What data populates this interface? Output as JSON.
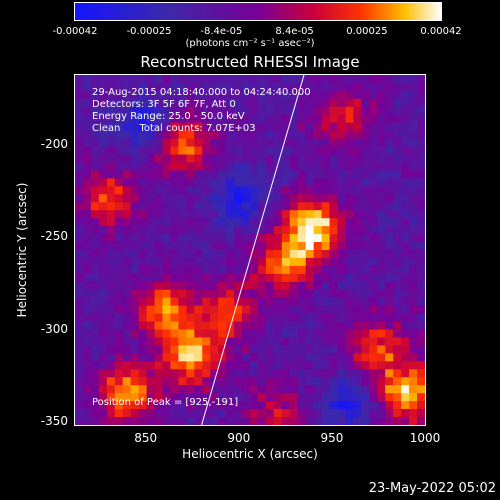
{
  "chart_data": {
    "type": "heatmap",
    "title": "Reconstructed RHESSI Image",
    "xlabel": "Heliocentric X (arcsec)",
    "ylabel": "Heliocentric Y (arcsec)",
    "xlim": [
      812,
      1000
    ],
    "ylim": [
      -352,
      -163
    ],
    "x_ticks": [
      "850",
      "900",
      "950",
      "1000"
    ],
    "y_ticks": [
      "-200",
      "-250",
      "-300",
      "-350"
    ],
    "colorbar": {
      "ticks": [
        "-0.00042",
        "-0.00025",
        "-8.4e-05",
        "8.4e-05",
        "0.00025",
        "0.00042"
      ],
      "unit_label": "(photons cm⁻² s⁻¹ asec⁻²)",
      "range": [
        -0.00042,
        0.00042
      ]
    },
    "info": {
      "time": "29-Aug-2015 04:18:40.000 to 04:24:40.000",
      "detectors": "Detectors: 3F 5F 6F 7F, Att 0",
      "energy": "Energy Range: 25.0 - 50.0 keV",
      "clean": "Clean      Total counts: 7.07E+03",
      "peak": "Position of Peak = [925,-191]"
    },
    "peak": [
      925,
      -191
    ],
    "limb_line": [
      [
        880,
        -352
      ],
      [
        935,
        -163
      ]
    ],
    "hot_regions": [
      {
        "x": 940,
        "y": -245,
        "level": 1.0
      },
      {
        "x": 925,
        "y": -265,
        "level": 0.7
      },
      {
        "x": 870,
        "y": -200,
        "level": 0.7
      },
      {
        "x": 830,
        "y": -230,
        "level": 0.6
      },
      {
        "x": 860,
        "y": -290,
        "level": 0.75
      },
      {
        "x": 875,
        "y": -315,
        "level": 0.85
      },
      {
        "x": 840,
        "y": -335,
        "level": 0.8
      },
      {
        "x": 895,
        "y": -290,
        "level": 0.6
      },
      {
        "x": 990,
        "y": -335,
        "level": 0.85
      },
      {
        "x": 975,
        "y": -310,
        "level": 0.6
      },
      {
        "x": 955,
        "y": -185,
        "level": 0.5
      },
      {
        "x": 920,
        "y": -345,
        "level": 0.45
      }
    ],
    "cold_regions": [
      {
        "x": 900,
        "y": -230
      },
      {
        "x": 960,
        "y": -340
      },
      {
        "x": 850,
        "y": -190
      }
    ]
  },
  "footer_date": "23-May-2022 05:02"
}
